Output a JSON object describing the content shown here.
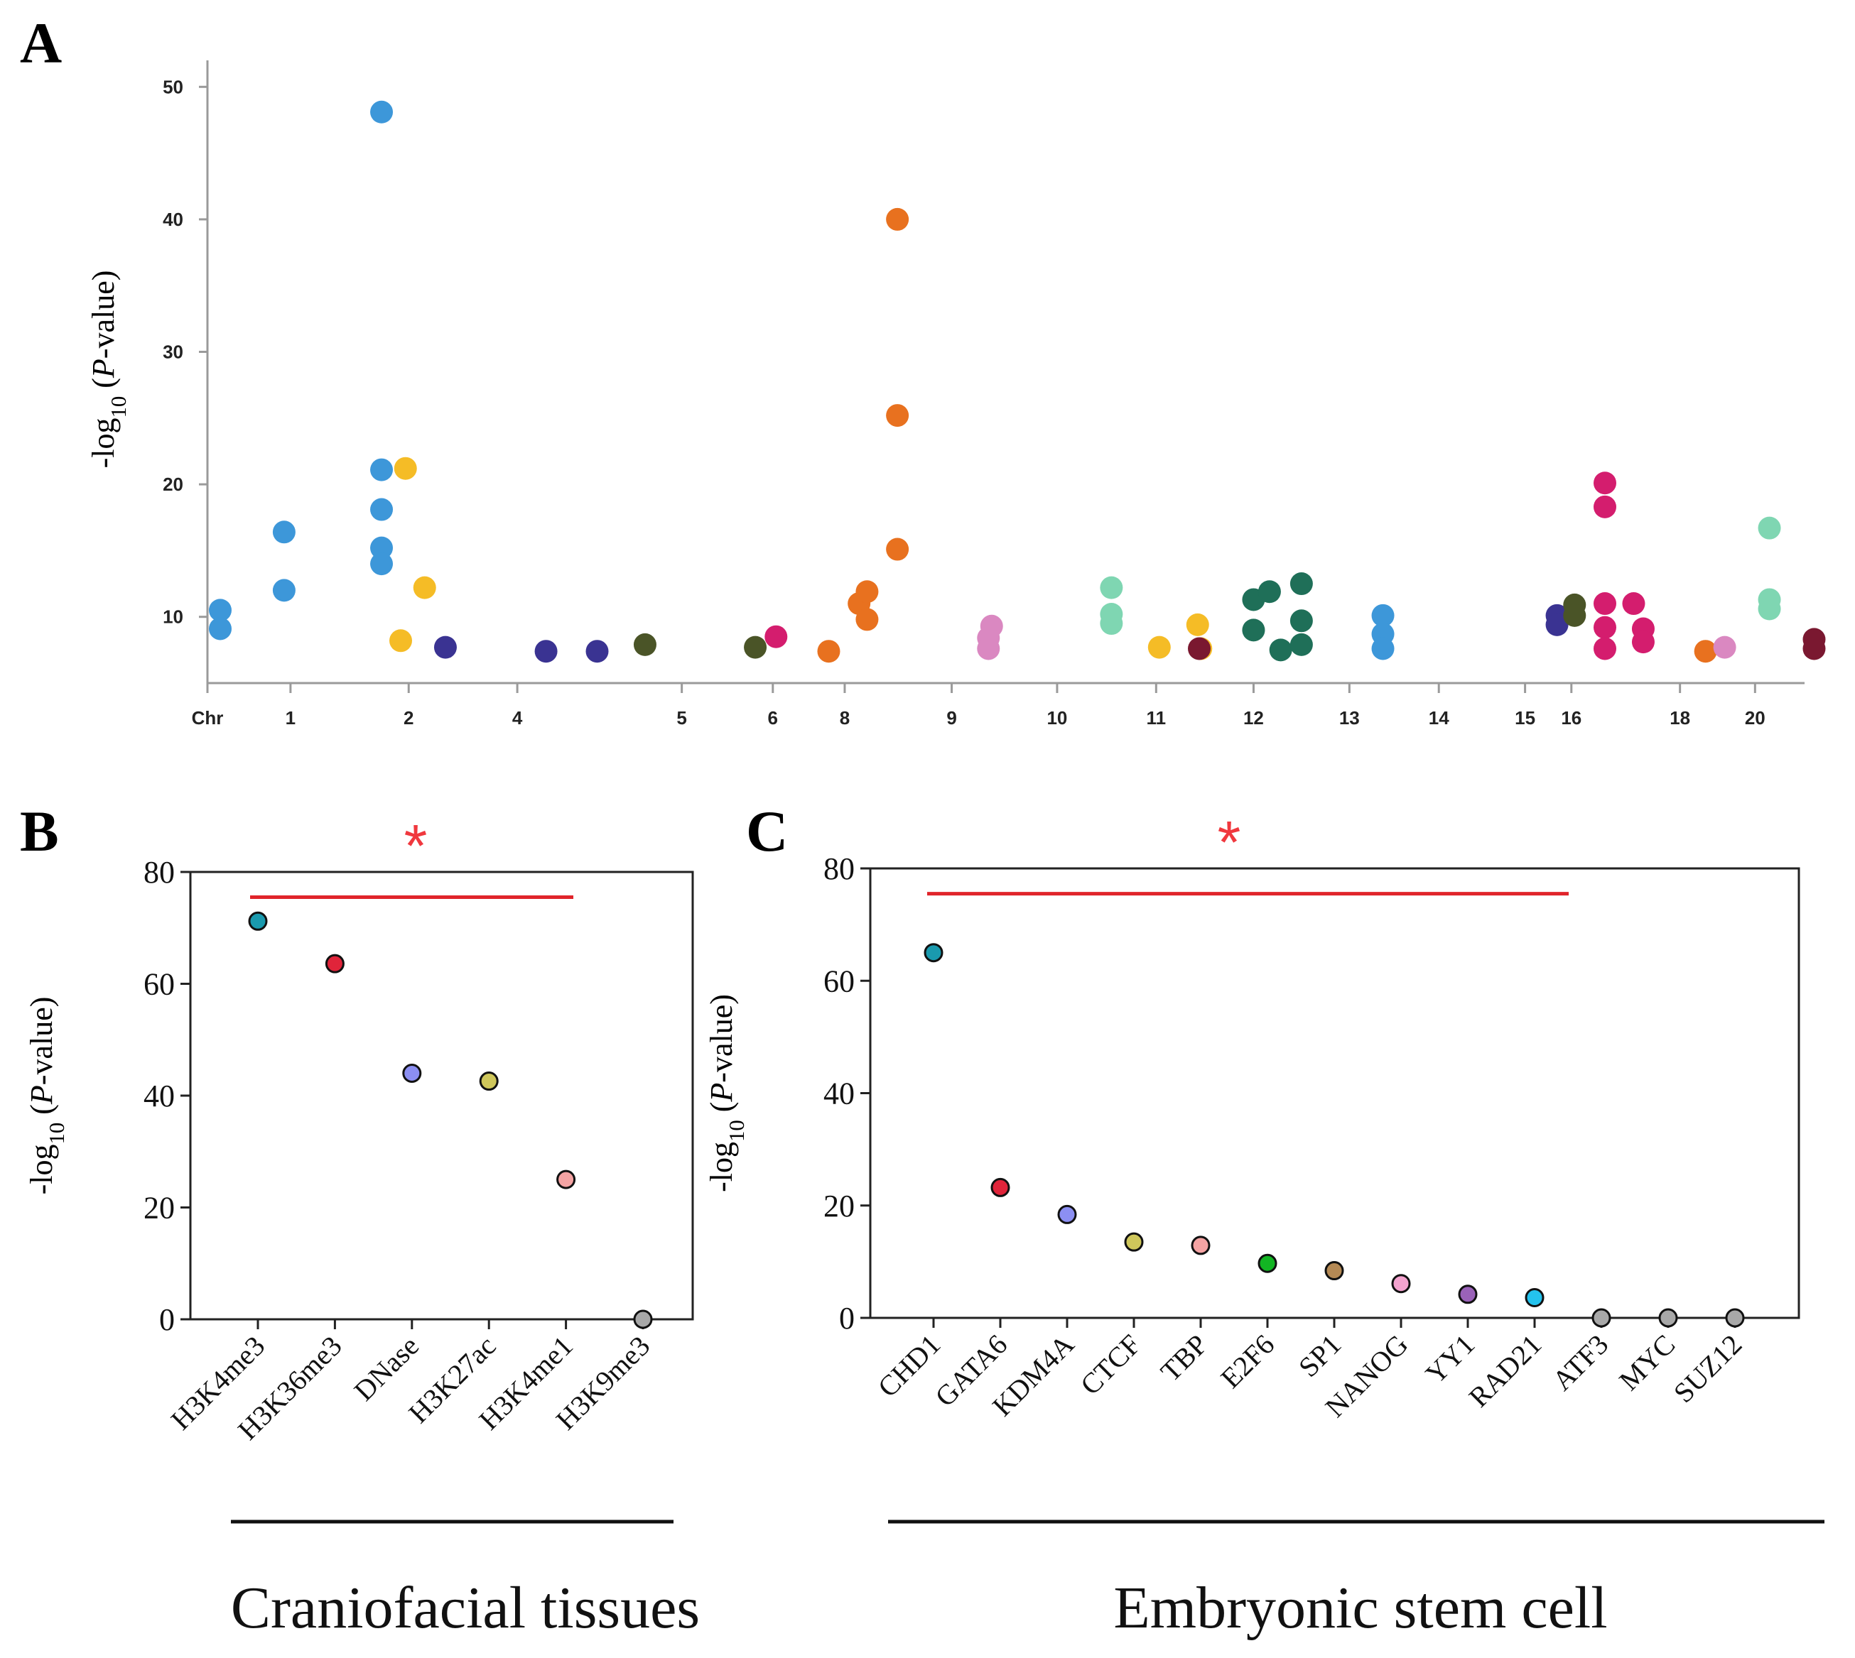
{
  "panels": {
    "A": {
      "letter": "A"
    },
    "B": {
      "letter": "B"
    },
    "C": {
      "letter": "C"
    }
  },
  "chart_data": [
    {
      "id": "A",
      "type": "scatter",
      "title": "",
      "xlabel": "",
      "ylabel_prefix": "-log",
      "ylabel_sub": "10",
      "ylabel_open": " (",
      "ylabel_italic": "P",
      "ylabel_suffix": "-value)",
      "ylim": [
        5,
        52
      ],
      "yticks": [
        10,
        20,
        30,
        40,
        50
      ],
      "xlim": [
        0,
        100
      ],
      "xtick_labels": [
        {
          "label": "Chr",
          "x": 0
        },
        {
          "label": "1",
          "x": 5.2
        },
        {
          "label": "2",
          "x": 12.6
        },
        {
          "label": "4",
          "x": 19.4
        },
        {
          "label": "5",
          "x": 29.7
        },
        {
          "label": "6",
          "x": 35.4
        },
        {
          "label": "8",
          "x": 39.9
        },
        {
          "label": "9",
          "x": 46.6
        },
        {
          "label": "10",
          "x": 53.2
        },
        {
          "label": "11",
          "x": 59.4
        },
        {
          "label": "12",
          "x": 65.5
        },
        {
          "label": "13",
          "x": 71.5
        },
        {
          "label": "14",
          "x": 77.1
        },
        {
          "label": "15",
          "x": 82.5
        },
        {
          "label": "16",
          "x": 85.4
        },
        {
          "label": "18",
          "x": 92.2
        },
        {
          "label": "20",
          "x": 96.9
        }
      ],
      "series": [
        {
          "name": "chr1",
          "color": "#3d97d9",
          "points": [
            [
              0.8,
              10.5
            ],
            [
              0.8,
              9.1
            ],
            [
              4.8,
              16.4
            ],
            [
              4.8,
              12.0
            ]
          ]
        },
        {
          "name": "chr2",
          "color": "#3d97d9",
          "points": [
            [
              10.9,
              48.1
            ],
            [
              10.9,
              21.1
            ],
            [
              10.9,
              18.1
            ],
            [
              10.9,
              15.2
            ],
            [
              10.9,
              14.0
            ]
          ]
        },
        {
          "name": "chr3",
          "color": "#f5bc26",
          "points": [
            [
              12.4,
              21.2
            ],
            [
              13.6,
              12.2
            ],
            [
              12.1,
              8.2
            ],
            [
              59.6,
              7.7
            ],
            [
              62.0,
              9.4
            ],
            [
              62.2,
              7.6
            ]
          ]
        },
        {
          "name": "chr4",
          "color": "#3a3392",
          "points": [
            [
              14.9,
              7.7
            ],
            [
              21.2,
              7.4
            ],
            [
              24.4,
              7.4
            ],
            [
              84.5,
              10.1
            ],
            [
              84.5,
              9.4
            ]
          ]
        },
        {
          "name": "chr5",
          "color": "#4a5427",
          "points": [
            [
              27.4,
              7.9
            ],
            [
              34.3,
              7.7
            ],
            [
              85.6,
              10.9
            ],
            [
              85.6,
              10.1
            ]
          ]
        },
        {
          "name": "chr6",
          "color": "#d41d6e",
          "points": [
            [
              35.6,
              8.5
            ],
            [
              87.5,
              20.1
            ],
            [
              87.5,
              18.3
            ],
            [
              87.5,
              11.0
            ],
            [
              87.5,
              9.2
            ],
            [
              87.5,
              7.6
            ],
            [
              89.3,
              11.0
            ],
            [
              89.9,
              9.1
            ],
            [
              89.9,
              8.1
            ]
          ]
        },
        {
          "name": "chr8",
          "color": "#e8711f",
          "points": [
            [
              38.9,
              7.4
            ],
            [
              40.8,
              11.0
            ],
            [
              41.3,
              11.9
            ],
            [
              41.3,
              9.8
            ],
            [
              43.2,
              40.0
            ],
            [
              43.2,
              25.2
            ],
            [
              43.2,
              15.1
            ],
            [
              93.8,
              7.4
            ]
          ]
        },
        {
          "name": "chr9",
          "color": "#da88c1",
          "points": [
            [
              49.1,
              9.3
            ],
            [
              48.9,
              8.4
            ],
            [
              48.9,
              7.6
            ],
            [
              95.0,
              7.7
            ]
          ]
        },
        {
          "name": "chr10",
          "color": "#7fd6b2",
          "points": [
            [
              56.6,
              12.2
            ],
            [
              56.6,
              10.2
            ],
            [
              56.6,
              9.5
            ],
            [
              97.8,
              16.7
            ],
            [
              97.8,
              11.3
            ],
            [
              97.8,
              10.6
            ]
          ]
        },
        {
          "name": "chr11",
          "color": "#7a1830",
          "points": [
            [
              62.1,
              7.6
            ],
            [
              100.6,
              8.3
            ],
            [
              100.6,
              7.6
            ]
          ]
        },
        {
          "name": "chr12",
          "color": "#1f6f58",
          "points": [
            [
              65.5,
              11.3
            ],
            [
              66.5,
              11.9
            ],
            [
              68.5,
              12.5
            ],
            [
              65.5,
              9.0
            ],
            [
              67.2,
              7.5
            ],
            [
              68.5,
              9.7
            ],
            [
              68.5,
              7.9
            ]
          ]
        },
        {
          "name": "chr13",
          "color": "#3d97d9",
          "points": [
            [
              73.6,
              10.1
            ],
            [
              73.6,
              8.7
            ],
            [
              73.6,
              7.6
            ]
          ]
        }
      ]
    },
    {
      "id": "B",
      "type": "scatter",
      "title": "",
      "group_label": "Craniofacial tissues",
      "significance_marker": "*",
      "ylabel_prefix": "-log",
      "ylabel_sub": "10",
      "ylabel_open": " (",
      "ylabel_italic": "P",
      "ylabel_suffix": "-value)",
      "ylim": [
        0,
        80
      ],
      "yticks": [
        0,
        20,
        40,
        60,
        80
      ],
      "categories": [
        "H3K4me3",
        "H3K36me3",
        "DNase",
        "H3K27ac",
        "H3K4me1",
        "H3K9me3"
      ],
      "values": [
        71.2,
        63.6,
        44.0,
        42.6,
        25.0,
        0.0
      ],
      "colors": [
        "#1a9aae",
        "#e0243a",
        "#8c8ff2",
        "#cfc75b",
        "#f4a3a3",
        "#a8a8a8"
      ],
      "significance_line_y": 75.5
    },
    {
      "id": "C",
      "type": "scatter",
      "title": "",
      "group_label": "Embryonic stem cell",
      "significance_marker": "*",
      "ylabel_prefix": "-log",
      "ylabel_sub": "10",
      "ylabel_open": " (",
      "ylabel_italic": "P",
      "ylabel_suffix": "-value)",
      "ylim": [
        0,
        80
      ],
      "yticks": [
        0,
        20,
        40,
        60,
        80
      ],
      "categories": [
        "CHD1",
        "GATA6",
        "KDM4A",
        "CTCF",
        "TBP",
        "E2F6",
        "SP1",
        "NANOG",
        "YY1",
        "RAD21",
        "ATF3",
        "MYC",
        "SUZ12"
      ],
      "values": [
        65.0,
        23.2,
        18.4,
        13.5,
        12.9,
        9.7,
        8.4,
        6.1,
        4.2,
        3.6,
        0.0,
        0.0,
        0.0
      ],
      "colors": [
        "#1a9aae",
        "#e0243a",
        "#8c8ff2",
        "#cfc75b",
        "#f4a3a3",
        "#12b523",
        "#b58a55",
        "#f4a3cf",
        "#9a62b8",
        "#24c3ee",
        "#a8a8a8",
        "#a8a8a8",
        "#a8a8a8"
      ],
      "significance_line_y": 75.5
    }
  ]
}
